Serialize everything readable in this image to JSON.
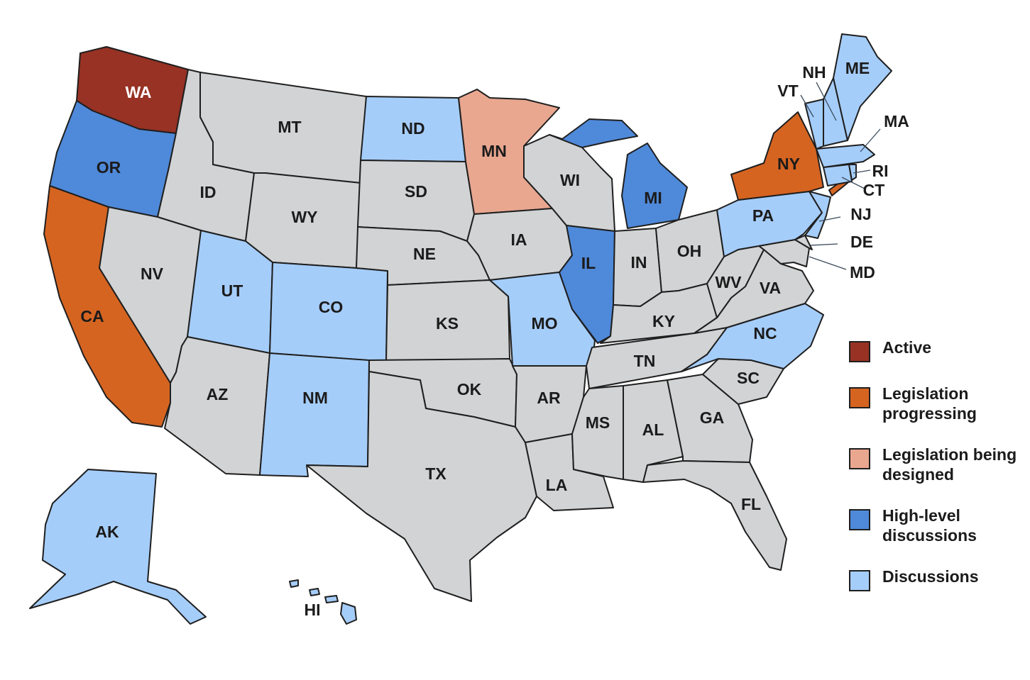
{
  "colors": {
    "active": "#973224",
    "legislation_progressing": "#d66421",
    "legislation_being_designed": "#e9a790",
    "high_level_discussions": "#4f89d9",
    "discussions": "#a5cdfa",
    "no_status": "#d1d3d4",
    "border": "#1f1f1f"
  },
  "legend": [
    {
      "label": "Active",
      "status": "active"
    },
    {
      "label": "Legislation progressing",
      "status": "legislation_progressing"
    },
    {
      "label": "Legislation being designed",
      "status": "legislation_being_designed"
    },
    {
      "label": "High-level discussions",
      "status": "high_level_discussions"
    },
    {
      "label": "Discussions",
      "status": "discussions"
    }
  ],
  "states": {
    "WA": "active",
    "OR": "high_level_discussions",
    "MI": "high_level_discussions",
    "IL": "high_level_discussions",
    "CA": "legislation_progressing",
    "NY": "legislation_progressing",
    "MN": "legislation_being_designed",
    "ND": "discussions",
    "UT": "discussions",
    "CO": "discussions",
    "NM": "discussions",
    "MO": "discussions",
    "PA": "discussions",
    "NC": "discussions",
    "AK": "discussions",
    "HI": "discussions",
    "ME": "discussions",
    "NH": "discussions",
    "VT": "discussions",
    "MA": "discussions",
    "RI": "discussions",
    "CT": "discussions",
    "NJ": "discussions",
    "MT": "no_status",
    "ID": "no_status",
    "WY": "no_status",
    "NV": "no_status",
    "AZ": "no_status",
    "SD": "no_status",
    "NE": "no_status",
    "KS": "no_status",
    "OK": "no_status",
    "TX": "no_status",
    "IA": "no_status",
    "AR": "no_status",
    "LA": "no_status",
    "WI": "no_status",
    "IN": "no_status",
    "OH": "no_status",
    "KY": "no_status",
    "TN": "no_status",
    "MS": "no_status",
    "AL": "no_status",
    "GA": "no_status",
    "FL": "no_status",
    "SC": "no_status",
    "VA": "no_status",
    "WV": "no_status",
    "MD": "no_status",
    "DE": "no_status"
  }
}
